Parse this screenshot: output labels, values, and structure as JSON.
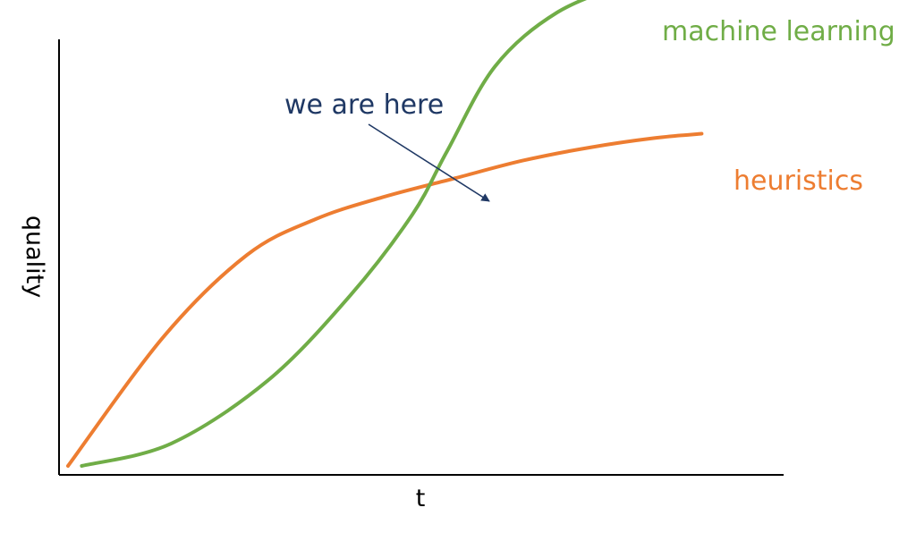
{
  "chart_data": {
    "type": "line",
    "title": "",
    "xlabel": "t",
    "ylabel": "quality",
    "xlim": [
      0,
      10
    ],
    "ylim": [
      0,
      10
    ],
    "grid": false,
    "legend": "inline labels at line ends",
    "series": [
      {
        "name": "heuristics",
        "color": "#ed7d31",
        "x": [
          0,
          1.4,
          2.6,
          3.6,
          4.6,
          5.6,
          6.6,
          7.6,
          8.5,
          9.2
        ],
        "y": [
          0.1,
          3.0,
          4.8,
          5.6,
          6.1,
          6.5,
          6.9,
          7.2,
          7.4,
          7.5
        ]
      },
      {
        "name": "machine learning",
        "color": "#70ad47",
        "x": [
          0.2,
          1.5,
          2.9,
          4.1,
          5.0,
          5.5,
          6.2,
          7.1,
          8.2
        ],
        "y": [
          0.1,
          0.6,
          2.0,
          3.9,
          5.7,
          7.1,
          9.0,
          10.2,
          10.9
        ]
      }
    ],
    "annotations": [
      {
        "text": "we are here",
        "color": "#1f3864",
        "x": 5.6,
        "y": 6.6
      }
    ]
  }
}
